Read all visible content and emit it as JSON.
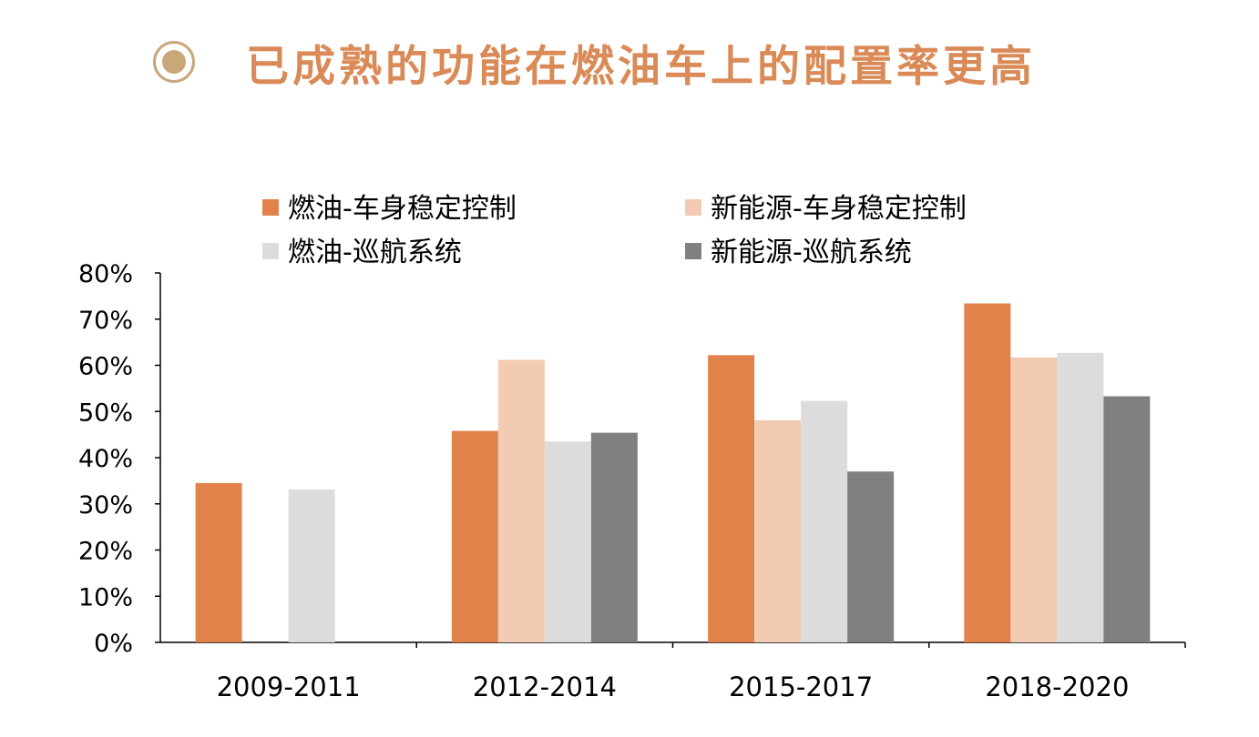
{
  "header": {
    "title": "已成熟的功能在燃油车上的配置率更高"
  },
  "colors": {
    "title": "#d98a57",
    "icon": "#c9a77b"
  },
  "chart_data": {
    "type": "bar",
    "title": "",
    "xlabel": "",
    "ylabel": "",
    "ylim": [
      0,
      80
    ],
    "y_ticks": [
      "0%",
      "10%",
      "20%",
      "30%",
      "40%",
      "50%",
      "60%",
      "70%",
      "80%"
    ],
    "categories": [
      "2009-2011",
      "2012-2014",
      "2015-2017",
      "2018-2020"
    ],
    "series": [
      {
        "name": "燃油-车身稳定控制",
        "color": "#e0824a",
        "values": [
          34.5,
          45.8,
          62.2,
          73.4
        ]
      },
      {
        "name": "新能源-车身稳定控制",
        "color": "#f2cbb2",
        "values": [
          null,
          61.2,
          48.1,
          61.7
        ]
      },
      {
        "name": "燃油-巡航系统",
        "color": "#dcdcdc",
        "values": [
          33.1,
          43.5,
          52.3,
          62.7
        ]
      },
      {
        "name": "新能源-巡航系统",
        "color": "#808080",
        "values": [
          null,
          45.4,
          37.0,
          53.3
        ]
      }
    ],
    "legend_position": "top",
    "grid": false
  }
}
